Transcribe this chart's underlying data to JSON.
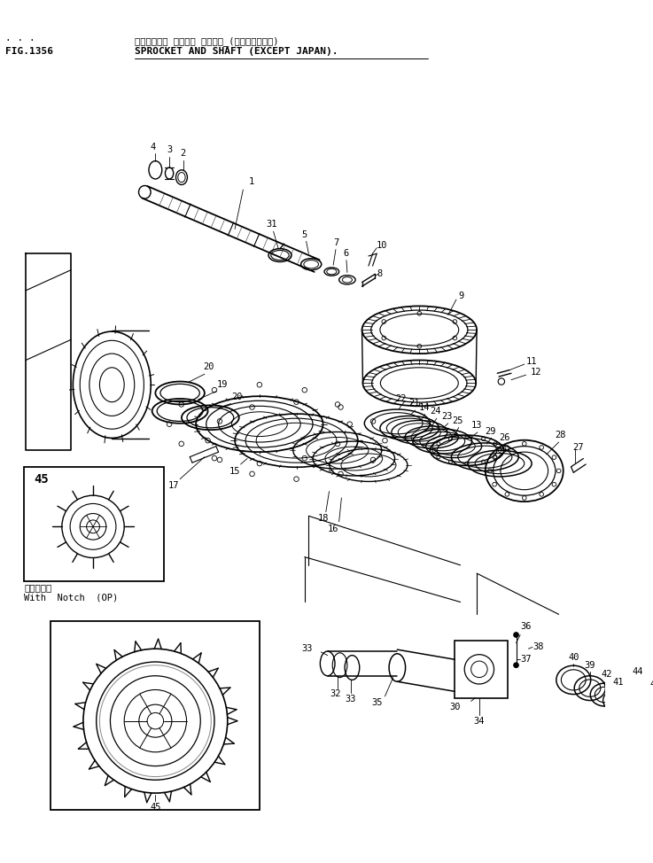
{
  "title_japanese": "スプロケット オヨビー シャフト_(カイガイニャク)",
  "title_english": "SPROCKET AND SHAFT (EXCEPT JAPAN).",
  "fig_number": "FIG.1356",
  "bg_color": "#ffffff",
  "line_color": "#000000",
  "fig_size": [
    7.37,
    9.74
  ],
  "dpi": 100,
  "label_notch_jp": "切り欠き付",
  "label_notch_en": "With  Notch  (OP)",
  "title_dots": "· · ·"
}
